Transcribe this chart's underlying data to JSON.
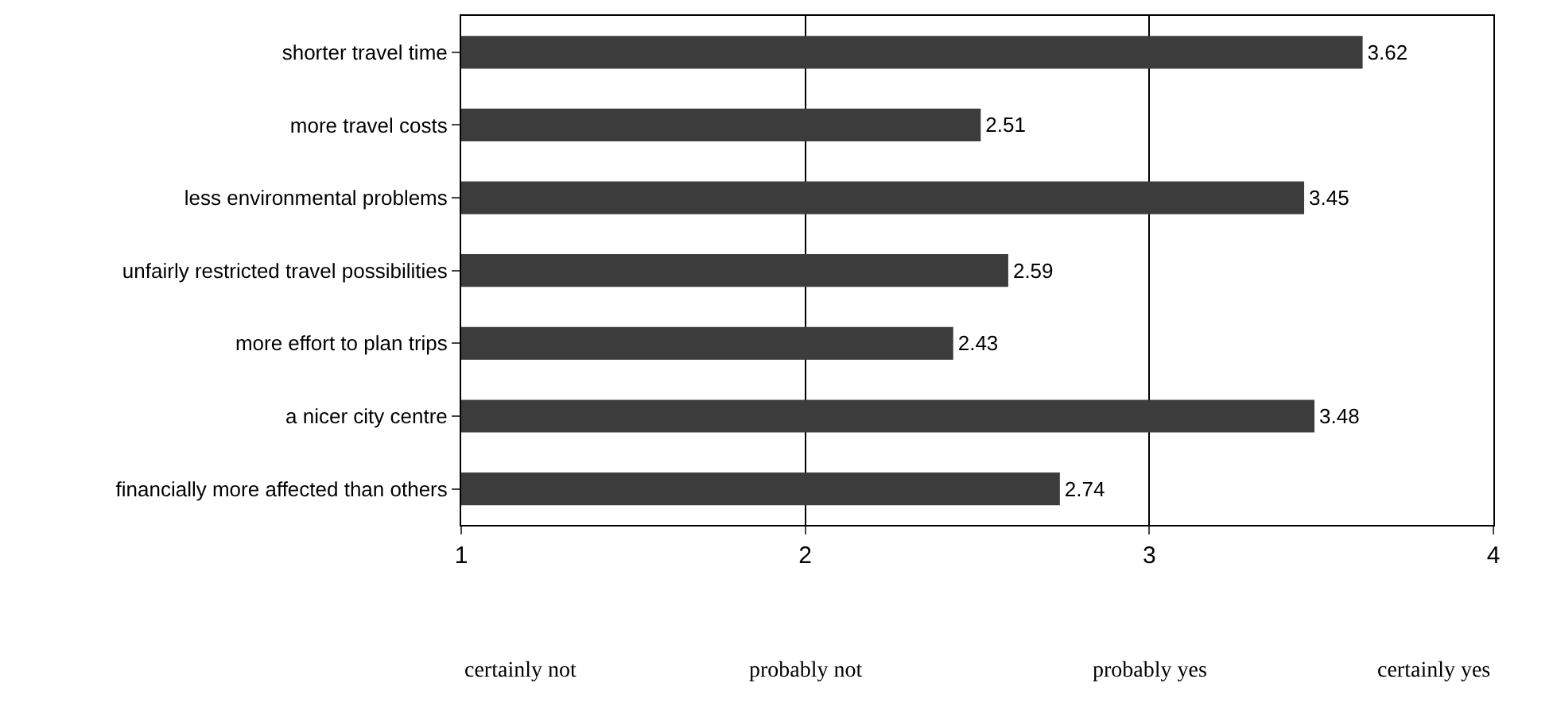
{
  "chart_data": {
    "type": "bar",
    "orientation": "horizontal",
    "categories": [
      "shorter travel time",
      "more travel costs",
      "less environmental problems",
      "unfairly restricted travel possibilities",
      "more effort to plan trips",
      "a nicer city centre",
      "financially more affected than others"
    ],
    "values": [
      3.62,
      2.51,
      3.45,
      2.59,
      2.43,
      3.48,
      2.74
    ],
    "color": "#3c3c3c",
    "data_labels": true,
    "xlim": [
      1,
      4
    ],
    "xticks": [
      1,
      2,
      3,
      4
    ],
    "annotations": [
      "certainly not",
      "probably not",
      "probably yes",
      "certainly yes"
    ],
    "grid": "x",
    "legend": false
  }
}
